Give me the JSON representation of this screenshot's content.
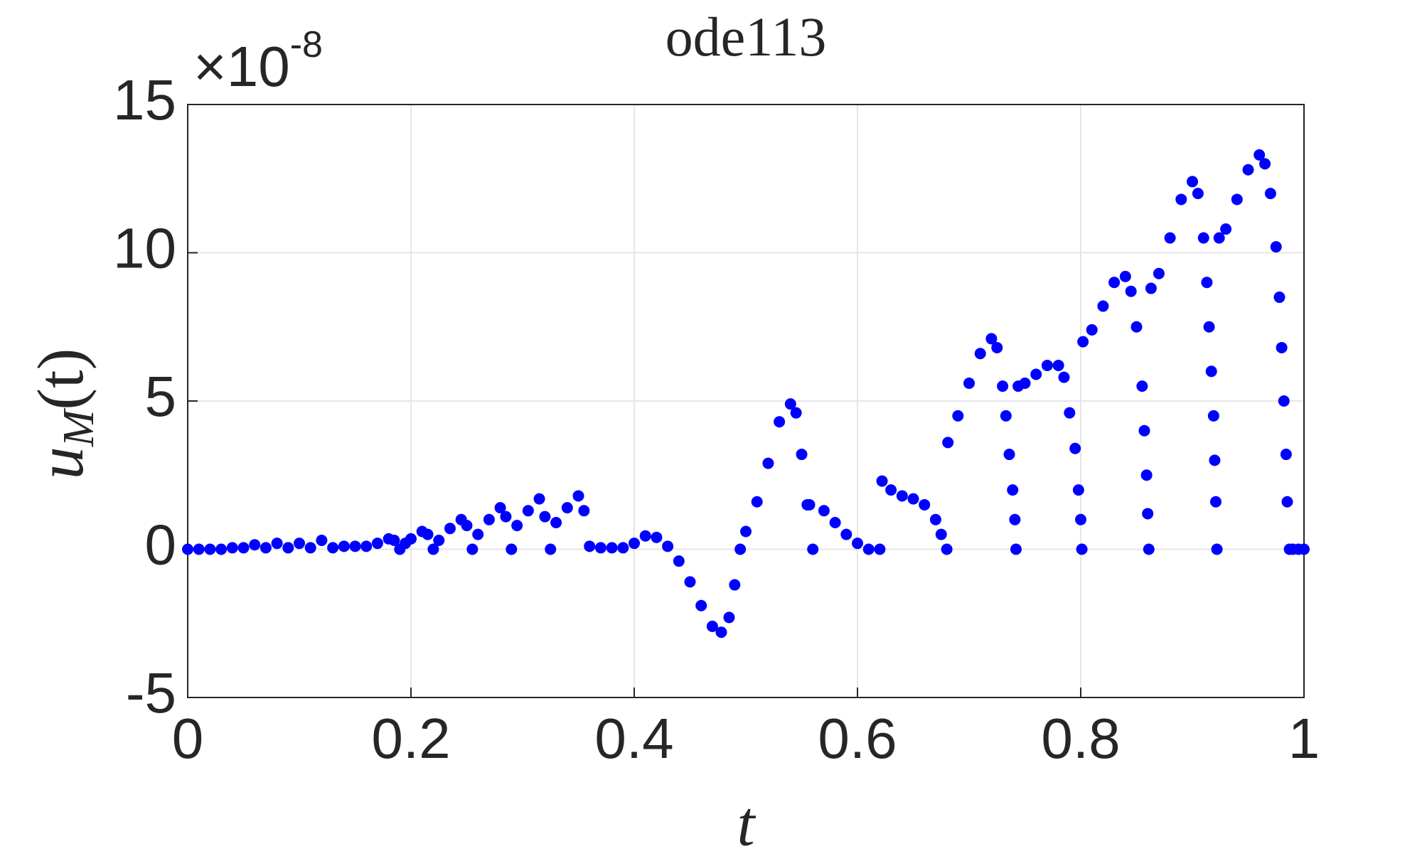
{
  "chart_data": {
    "type": "scatter",
    "title": "ode113",
    "x_label": "t",
    "y_label": {
      "base": "u",
      "subscript": "M",
      "suffix": "(t)"
    },
    "y_multiplier": {
      "base": "×10",
      "exponent": "-8"
    },
    "color": "#0000ff",
    "x": [
      0,
      0.01,
      0.02,
      0.03,
      0.04,
      0.05,
      0.06,
      0.07,
      0.08,
      0.09,
      0.1,
      0.11,
      0.12,
      0.13,
      0.14,
      0.15,
      0.16,
      0.17,
      0.18,
      0.185,
      0.19,
      0.195,
      0.2,
      0.21,
      0.215,
      0.22,
      0.225,
      0.235,
      0.245,
      0.25,
      0.255,
      0.26,
      0.27,
      0.28,
      0.285,
      0.29,
      0.295,
      0.305,
      0.315,
      0.32,
      0.325,
      0.33,
      0.34,
      0.35,
      0.355,
      0.36,
      0.37,
      0.38,
      0.39,
      0.4,
      0.41,
      0.42,
      0.43,
      0.44,
      0.45,
      0.46,
      0.47,
      0.478,
      0.485,
      0.49,
      0.495,
      0.5,
      0.51,
      0.52,
      0.53,
      0.54,
      0.545,
      0.55,
      0.555,
      0.56,
      0.557,
      0.57,
      0.58,
      0.59,
      0.6,
      0.61,
      0.62,
      0.622,
      0.63,
      0.64,
      0.65,
      0.66,
      0.67,
      0.675,
      0.68,
      0.681,
      0.69,
      0.7,
      0.71,
      0.72,
      0.725,
      0.73,
      0.733,
      0.736,
      0.739,
      0.741,
      0.742,
      0.744,
      0.75,
      0.76,
      0.77,
      0.78,
      0.785,
      0.79,
      0.795,
      0.798,
      0.8,
      0.801,
      0.802,
      0.81,
      0.82,
      0.83,
      0.84,
      0.845,
      0.85,
      0.855,
      0.857,
      0.859,
      0.86,
      0.861,
      0.863,
      0.87,
      0.88,
      0.89,
      0.9,
      0.905,
      0.91,
      0.913,
      0.915,
      0.917,
      0.919,
      0.92,
      0.921,
      0.922,
      0.924,
      0.93,
      0.94,
      0.95,
      0.96,
      0.965,
      0.97,
      0.975,
      0.978,
      0.98,
      0.982,
      0.984,
      0.985,
      0.987,
      0.99,
      0.995,
      1
    ],
    "values": [
      0,
      0,
      0,
      0,
      0.05,
      0.05,
      0.15,
      0.05,
      0.2,
      0.05,
      0.2,
      0.05,
      0.3,
      0.05,
      0.1,
      0.1,
      0.1,
      0.2,
      0.35,
      0.3,
      0,
      0.2,
      0.35,
      0.6,
      0.5,
      0,
      0.3,
      0.7,
      1.0,
      0.8,
      0,
      0.5,
      1.0,
      1.4,
      1.1,
      0,
      0.8,
      1.3,
      1.7,
      1.1,
      0,
      0.9,
      1.4,
      1.8,
      1.3,
      0.1,
      0.05,
      0.05,
      0.05,
      0.2,
      0.45,
      0.4,
      0.1,
      -0.4,
      -1.1,
      -1.9,
      -2.6,
      -2.8,
      -2.3,
      -1.2,
      0,
      0.6,
      1.6,
      2.9,
      4.3,
      4.9,
      4.6,
      3.2,
      1.5,
      0,
      1.5,
      1.3,
      0.9,
      0.5,
      0.2,
      0,
      0,
      2.3,
      2.0,
      1.8,
      1.7,
      1.5,
      1.0,
      0.5,
      0,
      3.6,
      4.5,
      5.6,
      6.6,
      7.1,
      6.8,
      5.5,
      4.5,
      3.2,
      2,
      1,
      0,
      5.5,
      5.6,
      5.9,
      6.2,
      6.2,
      5.8,
      4.6,
      3.4,
      2,
      1,
      0,
      7.0,
      7.4,
      8.2,
      9.0,
      9.2,
      8.7,
      7.5,
      5.5,
      4,
      2.5,
      1.2,
      0,
      8.8,
      9.3,
      10.5,
      11.8,
      12.4,
      12,
      10.5,
      9,
      7.5,
      6,
      4.5,
      3,
      1.6,
      0,
      10.5,
      10.8,
      11.8,
      12.8,
      13.3,
      13,
      12,
      10.2,
      8.5,
      6.8,
      5,
      3.2,
      1.6,
      0,
      0,
      0,
      0
    ],
    "xlim": [
      0,
      1
    ],
    "xticks": [
      0,
      0.2,
      0.4,
      0.6,
      0.8,
      1
    ],
    "ylim": [
      -5,
      15
    ],
    "yticks": [
      -5,
      0,
      5,
      10,
      15
    ],
    "grid": true
  }
}
